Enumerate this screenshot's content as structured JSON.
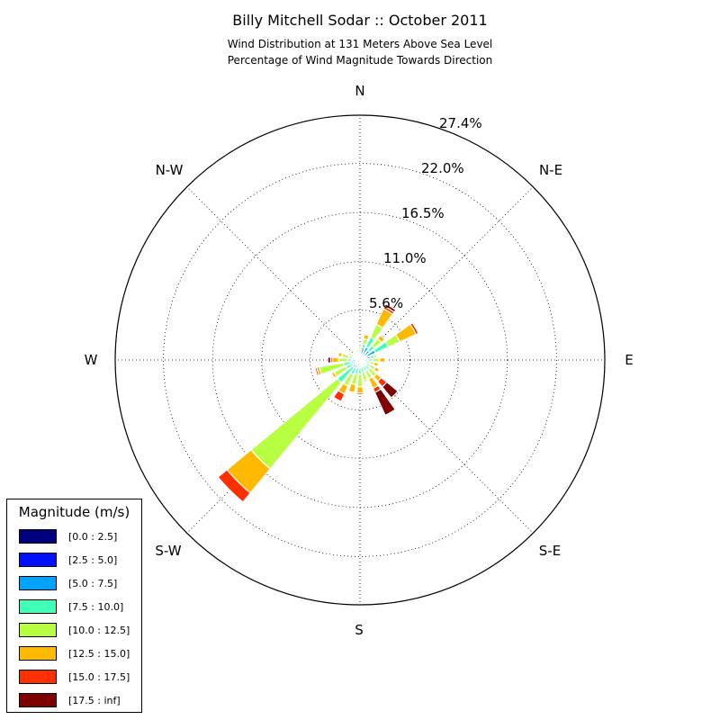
{
  "chart_data": {
    "type": "windrose",
    "title": "Billy Mitchell Sodar :: October 2011",
    "subtitle_lines": [
      "Wind Distribution at 131 Meters Above Sea Level",
      "Percentage of Wind Magnitude Towards Direction"
    ],
    "directions": [
      "N",
      "N-E",
      "E",
      "S-E",
      "S",
      "S-W",
      "W",
      "N-W"
    ],
    "radial_ticks": [
      "5.6%",
      "11.0%",
      "16.5%",
      "22.0%",
      "27.4%"
    ],
    "rmax": 27.4,
    "legend_title": "Magnitude (m/s)",
    "bins": [
      {
        "label": "[0.0 : 2.5]",
        "color": "#00007f"
      },
      {
        "label": "[2.5 : 5.0]",
        "color": "#0010ff"
      },
      {
        "label": "[5.0 : 7.5]",
        "color": "#00a4ff"
      },
      {
        "label": "[7.5 : 10.0]",
        "color": "#40ffb7"
      },
      {
        "label": "[10.0 : 12.5]",
        "color": "#b7ff40"
      },
      {
        "label": "[12.5 : 15.0]",
        "color": "#ffb900"
      },
      {
        "label": "[15.0 : 17.5]",
        "color": "#ff3000"
      },
      {
        "label": "[17.5 : inf]",
        "color": "#7f0000"
      }
    ],
    "sectors": [
      {
        "dir": 0,
        "values": [
          0.1,
          0.3,
          0.4,
          0.3,
          0.3,
          0.2,
          0,
          0
        ]
      },
      {
        "dir": 15,
        "values": [
          0.1,
          0.5,
          0.8,
          0.4,
          0.6,
          0.5,
          0,
          0
        ]
      },
      {
        "dir": 30,
        "values": [
          0.1,
          0.5,
          1.0,
          1.2,
          1.6,
          1.9,
          0.3,
          0.3
        ]
      },
      {
        "dir": 45,
        "values": [
          0.1,
          0.6,
          0.7,
          0.7,
          1.0,
          0.5,
          0,
          0
        ]
      },
      {
        "dir": 60,
        "values": [
          0.1,
          0.7,
          1.1,
          1.6,
          1.4,
          2.0,
          0.3,
          0.1
        ]
      },
      {
        "dir": 75,
        "values": [
          0.1,
          0.4,
          0.7,
          0.4,
          0.3,
          0,
          0,
          0
        ]
      },
      {
        "dir": 90,
        "values": [
          0.1,
          0.3,
          0.5,
          0.5,
          0.8,
          0.6,
          0.1,
          0
        ]
      },
      {
        "dir": 105,
        "values": [
          0.1,
          0.2,
          0.4,
          0.4,
          0.5,
          0.5,
          0.1,
          0
        ]
      },
      {
        "dir": 120,
        "values": [
          0.1,
          0.2,
          0.4,
          0.5,
          0.7,
          0.5,
          0.1,
          0
        ]
      },
      {
        "dir": 135,
        "values": [
          0.1,
          0.2,
          0.5,
          0.6,
          1.0,
          0.7,
          0.8,
          1.6
        ]
      },
      {
        "dir": 150,
        "values": [
          0.1,
          0.2,
          0.5,
          0.6,
          0.9,
          1.2,
          0.5,
          2.8
        ]
      },
      {
        "dir": 165,
        "values": [
          0.1,
          0.2,
          0.5,
          0.6,
          0.9,
          0.2,
          0,
          0
        ]
      },
      {
        "dir": 180,
        "values": [
          0.1,
          0.2,
          0.5,
          0.8,
          1.4,
          0.7,
          0.2,
          0
        ]
      },
      {
        "dir": 195,
        "values": [
          0.1,
          0.3,
          0.5,
          0.7,
          1.2,
          0.9,
          0.1,
          0
        ]
      },
      {
        "dir": 210,
        "values": [
          0.1,
          0.3,
          0.6,
          0.8,
          1.4,
          1.0,
          0.9,
          0
        ]
      },
      {
        "dir": 225,
        "values": [
          0.1,
          0.3,
          0.7,
          2.2,
          12.5,
          3.5,
          1.3,
          0
        ]
      },
      {
        "dir": 240,
        "values": [
          0.1,
          0.3,
          0.5,
          0.8,
          1.5,
          0.3,
          0,
          0
        ]
      },
      {
        "dir": 255,
        "values": [
          0.1,
          0.3,
          0.6,
          0.9,
          2.7,
          0.3,
          0.2,
          0
        ]
      },
      {
        "dir": 270,
        "values": [
          0.1,
          0.3,
          0.5,
          0.5,
          1.0,
          0.7,
          0.2,
          0.3
        ]
      },
      {
        "dir": 285,
        "values": [
          0.1,
          0.3,
          0.5,
          0.4,
          0.8,
          0.4,
          0,
          0
        ]
      },
      {
        "dir": 300,
        "values": [
          0.1,
          0.2,
          0.3,
          0.3,
          0.3,
          0.2,
          0,
          0
        ]
      },
      {
        "dir": 315,
        "values": [
          0.1,
          0.2,
          0.2,
          0.2,
          0.3,
          0,
          0,
          0
        ]
      },
      {
        "dir": 330,
        "values": [
          0.1,
          0.2,
          0.3,
          0.3,
          0.2,
          0,
          0,
          0
        ]
      },
      {
        "dir": 345,
        "values": [
          0.1,
          0.2,
          0.3,
          0.3,
          0.3,
          0,
          0,
          0
        ]
      }
    ]
  }
}
